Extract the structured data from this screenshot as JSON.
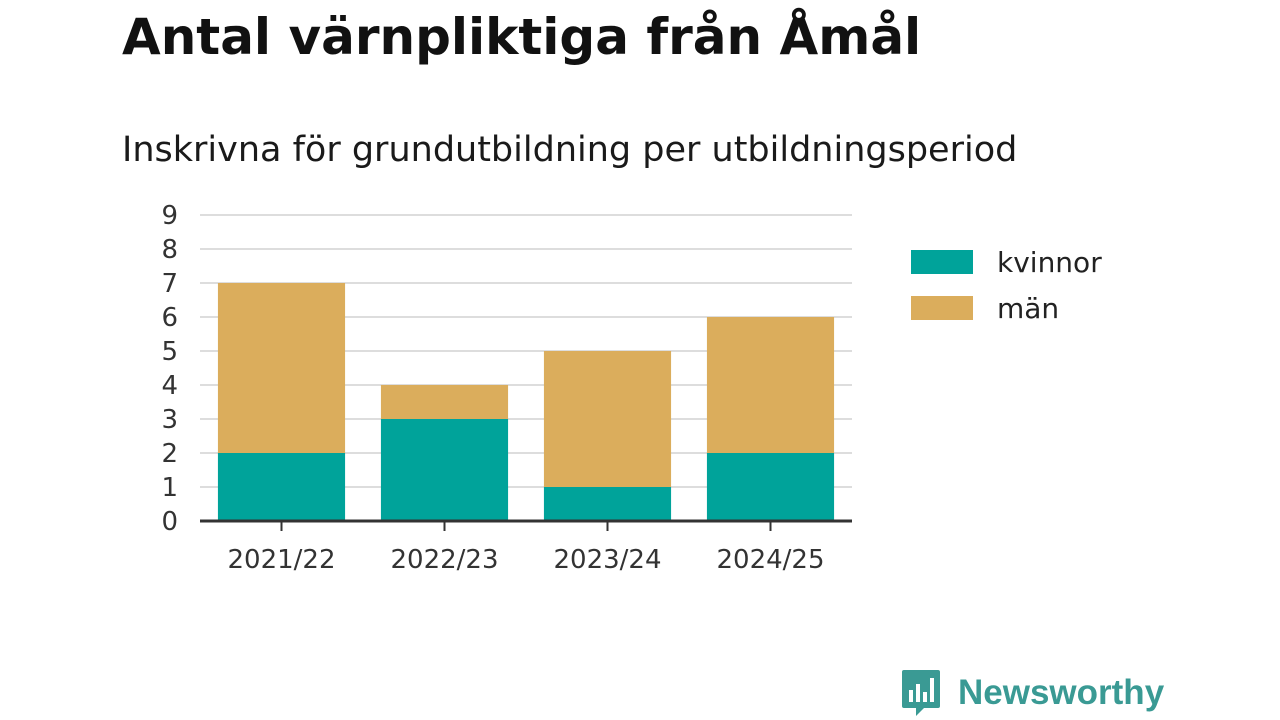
{
  "header": {
    "title": "Antal värnpliktiga från Åmål",
    "subtitle": "Inskrivna för grundutbildning per utbildningsperiod"
  },
  "brand": {
    "name": "Newsworthy",
    "icon": "newsworthy-logo-icon",
    "color": "#3a9a94"
  },
  "chart_data": {
    "type": "bar",
    "stacked": true,
    "categories": [
      "2021/22",
      "2022/23",
      "2023/24",
      "2024/25"
    ],
    "series": [
      {
        "name": "kvinnor",
        "values": [
          2,
          3,
          1,
          2
        ],
        "color": "#00a39a"
      },
      {
        "name": "män",
        "values": [
          5,
          1,
          4,
          4
        ],
        "color": "#dbad5c"
      }
    ],
    "title": "Antal värnpliktiga från Åmål",
    "subtitle": "Inskrivna för grundutbildning per utbildningsperiod",
    "xlabel": "",
    "ylabel": "",
    "ylim": [
      0,
      9
    ],
    "yticks": [
      0,
      1,
      2,
      3,
      4,
      5,
      6,
      7,
      8,
      9
    ],
    "grid": true,
    "legend": "right"
  }
}
